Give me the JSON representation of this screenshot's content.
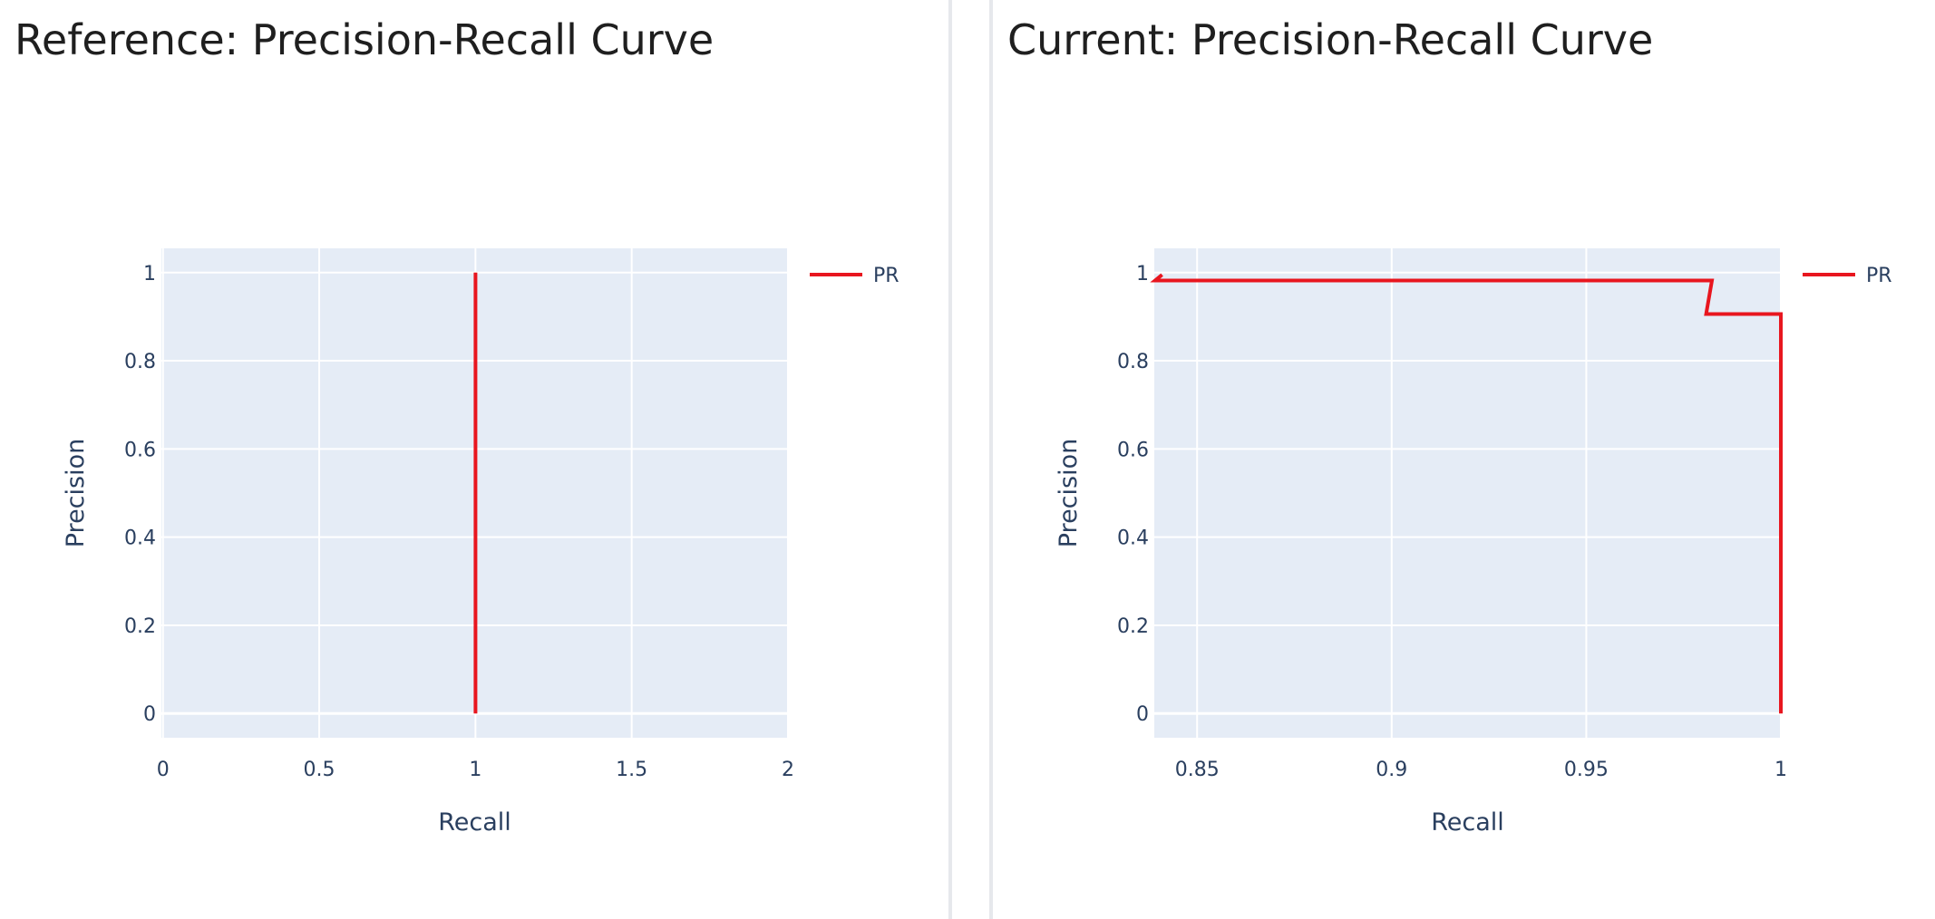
{
  "panels": [
    {
      "title": "Reference: Precision-Recall Curve",
      "chart_data": {
        "type": "line",
        "title": "",
        "xlabel": "Recall",
        "ylabel": "Precision",
        "xlim": [
          -0.005,
          2.0
        ],
        "ylim": [
          -0.055,
          1.055
        ],
        "xticks": [
          0,
          0.5,
          1,
          1.5,
          2
        ],
        "xtick_labels": [
          "0",
          "0.5",
          "1",
          "1.5",
          "2"
        ],
        "yticks": [
          0,
          0.2,
          0.4,
          0.6,
          0.8,
          1
        ],
        "ytick_labels": [
          "0",
          "0.2",
          "0.4",
          "0.6",
          "0.8",
          "1"
        ],
        "grid": true,
        "legend": "right",
        "series": [
          {
            "name": "PR",
            "color": "#e8161f",
            "x": [
              1,
              1
            ],
            "y": [
              1,
              0
            ]
          }
        ]
      }
    },
    {
      "title": "Current: Precision-Recall Curve",
      "chart_data": {
        "type": "line",
        "title": "",
        "xlabel": "Recall",
        "ylabel": "Precision",
        "xlim": [
          0.839,
          1.0
        ],
        "ylim": [
          -0.055,
          1.055
        ],
        "xticks": [
          0.85,
          0.9,
          0.95,
          1
        ],
        "xtick_labels": [
          "0.85",
          "0.9",
          "0.95",
          "1"
        ],
        "yticks": [
          0,
          0.2,
          0.4,
          0.6,
          0.8,
          1
        ],
        "ytick_labels": [
          "0",
          "0.2",
          "0.4",
          "0.6",
          "0.8",
          "1"
        ],
        "grid": true,
        "legend": "right",
        "series": [
          {
            "name": "PR",
            "color": "#e8161f",
            "x": [
              0.841,
              0.8392,
              0.9813,
              0.9823,
              0.9808,
              1.0,
              1.0
            ],
            "y": [
              0.995,
              0.982,
              0.982,
              0.982,
              0.906,
              0.906,
              0.0
            ]
          }
        ]
      }
    }
  ]
}
